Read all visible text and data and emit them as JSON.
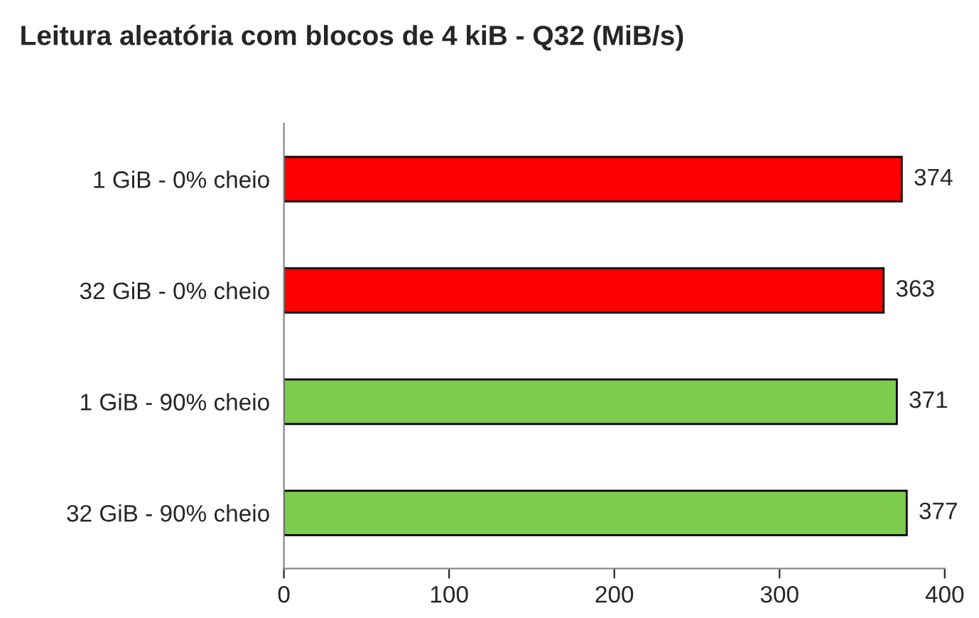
{
  "chart_data": {
    "type": "bar",
    "orientation": "horizontal",
    "title": "Leitura aleatória com blocos de 4 kiB - Q32 (MiB/s)",
    "categories": [
      "1 GiB - 0% cheio",
      "32 GiB - 0% cheio",
      "1 GiB - 90% cheio",
      "32 GiB - 90% cheio"
    ],
    "values": [
      374,
      363,
      371,
      377
    ],
    "colors": [
      "#ff0000",
      "#ff0000",
      "#7ccd4e",
      "#7ccd4e"
    ],
    "xlim": [
      0,
      400
    ],
    "xticks": [
      0,
      100,
      200,
      300,
      400
    ],
    "grid": false,
    "data_labels": true
  }
}
